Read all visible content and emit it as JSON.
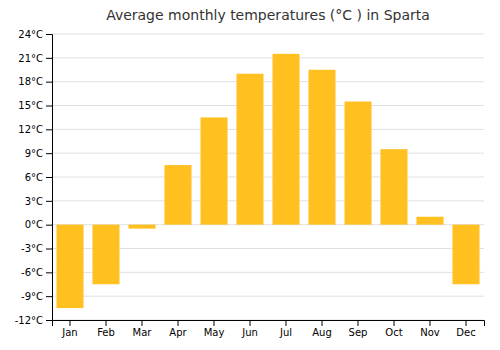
{
  "chart_data": {
    "type": "bar",
    "title": "Average monthly temperatures (°C ) in Sparta",
    "categories": [
      "Jan",
      "Feb",
      "Mar",
      "Apr",
      "May",
      "Jun",
      "Jul",
      "Aug",
      "Sep",
      "Oct",
      "Nov",
      "Dec"
    ],
    "values": [
      -10.5,
      -7.5,
      -0.5,
      7.5,
      13.5,
      19.0,
      21.5,
      19.5,
      15.5,
      9.5,
      1.0,
      -7.5
    ],
    "color": "#FFC020",
    "ylim": [
      -12,
      24
    ],
    "yticks": [
      {
        "value": -12,
        "label": "-12°C"
      },
      {
        "value": -9,
        "label": "-9°C"
      },
      {
        "value": -6,
        "label": "-6°C"
      },
      {
        "value": -3,
        "label": "-3°C"
      },
      {
        "value": 0,
        "label": "0°C"
      },
      {
        "value": 3,
        "label": "3°C"
      },
      {
        "value": 6,
        "label": "6°C"
      },
      {
        "value": 9,
        "label": "9°C"
      },
      {
        "value": 12,
        "label": "12°C"
      },
      {
        "value": 15,
        "label": "15°C"
      },
      {
        "value": 18,
        "label": "18°C"
      },
      {
        "value": 21,
        "label": "21°C"
      },
      {
        "value": 24,
        "label": "24°C"
      }
    ],
    "grid": true
  }
}
